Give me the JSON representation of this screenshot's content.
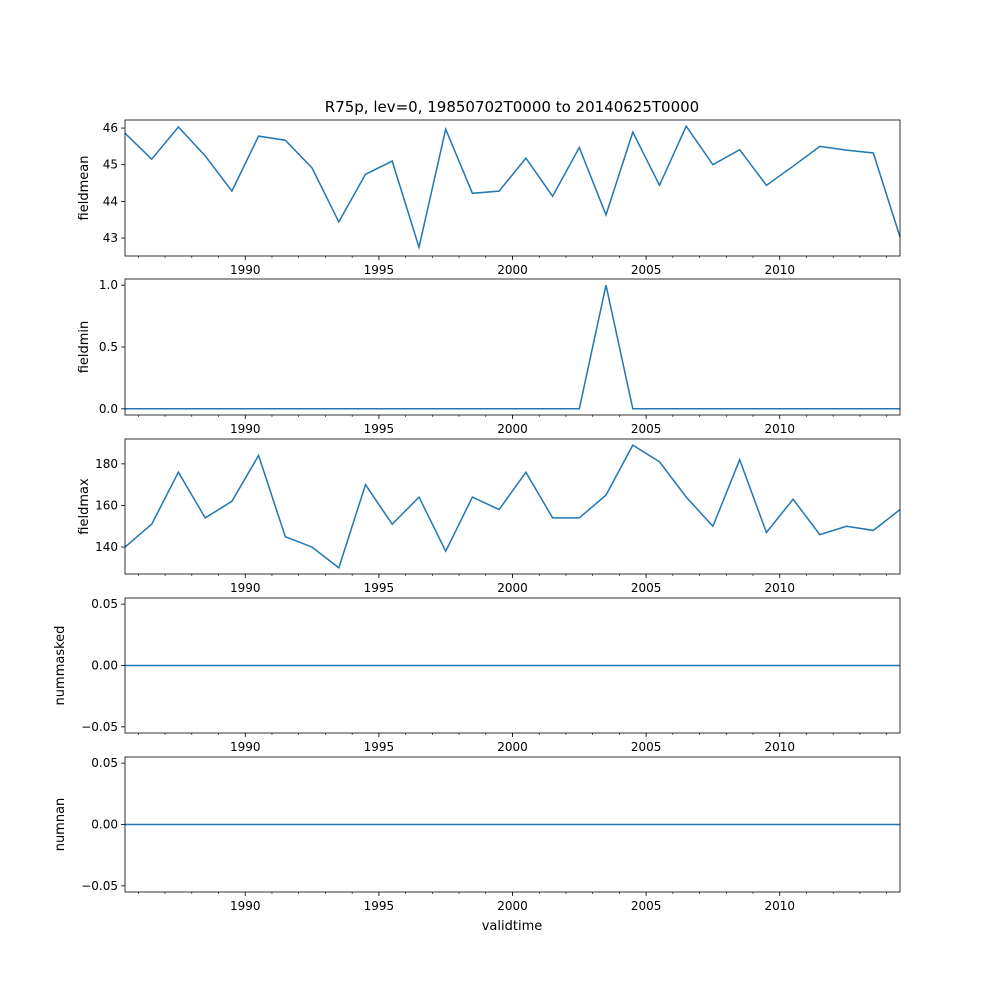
{
  "chart_data": {
    "type": "line",
    "title": "R75p, lev=0, 19850702T0000 to 20140625T0000",
    "xlabel": "validtime",
    "xlim": [
      1985.5,
      2014.5
    ],
    "xticks": [
      1990,
      1995,
      2000,
      2005,
      2010
    ],
    "x": [
      1985.5,
      1986.5,
      1987.5,
      1988.5,
      1989.5,
      1990.5,
      1991.5,
      1992.5,
      1993.5,
      1994.5,
      1995.5,
      1996.5,
      1997.5,
      1998.5,
      1999.5,
      2000.5,
      2001.5,
      2002.5,
      2003.5,
      2004.5,
      2005.5,
      2006.5,
      2007.5,
      2008.5,
      2009.5,
      2010.5,
      2011.5,
      2012.5,
      2013.5,
      2014.5
    ],
    "line_color": "#1f77b4",
    "panels": [
      {
        "ylabel": "fieldmean",
        "ylim": [
          42.51,
          46.22
        ],
        "yticks": [
          43,
          44,
          45,
          46
        ],
        "ytick_labels": [
          "43",
          "44",
          "45",
          "46"
        ],
        "values": [
          45.86,
          45.15,
          46.03,
          45.24,
          44.28,
          45.78,
          45.67,
          44.91,
          43.44,
          44.74,
          45.1,
          42.75,
          45.97,
          44.22,
          44.28,
          45.18,
          44.14,
          45.47,
          43.63,
          45.89,
          44.44,
          46.05,
          45.0,
          45.41,
          44.44,
          44.96,
          45.5,
          45.4,
          45.32,
          43.03
        ]
      },
      {
        "ylabel": "fieldmin",
        "ylim": [
          -0.05,
          1.05
        ],
        "yticks": [
          0,
          0.5,
          1.0
        ],
        "ytick_labels": [
          "0.0",
          "0.5",
          "1.0"
        ],
        "values": [
          0,
          0,
          0,
          0,
          0,
          0,
          0,
          0,
          0,
          0,
          0,
          0,
          0,
          0,
          0,
          0,
          0,
          0,
          1,
          0,
          0,
          0,
          0,
          0,
          0,
          0,
          0,
          0,
          0,
          0
        ]
      },
      {
        "ylabel": "fieldmax",
        "ylim": [
          127.05,
          191.95
        ],
        "yticks": [
          140,
          160,
          180
        ],
        "ytick_labels": [
          "140",
          "160",
          "180"
        ],
        "values": [
          140,
          151,
          176,
          154,
          162,
          184,
          145,
          140,
          130,
          170,
          151,
          164,
          138,
          164,
          158,
          176,
          154,
          154,
          165,
          189,
          181,
          164,
          150,
          182,
          147,
          163,
          146,
          150,
          148,
          158
        ]
      },
      {
        "ylabel": "nummasked",
        "ylim": [
          -0.055,
          0.055
        ],
        "yticks": [
          -0.05,
          0,
          0.05
        ],
        "ytick_labels": [
          "−0.05",
          "0.00",
          "0.05"
        ],
        "values": [
          0,
          0,
          0,
          0,
          0,
          0,
          0,
          0,
          0,
          0,
          0,
          0,
          0,
          0,
          0,
          0,
          0,
          0,
          0,
          0,
          0,
          0,
          0,
          0,
          0,
          0,
          0,
          0,
          0,
          0
        ]
      },
      {
        "ylabel": "numnan",
        "ylim": [
          -0.055,
          0.055
        ],
        "yticks": [
          -0.05,
          0,
          0.05
        ],
        "ytick_labels": [
          "−0.05",
          "0.00",
          "0.05"
        ],
        "values": [
          0,
          0,
          0,
          0,
          0,
          0,
          0,
          0,
          0,
          0,
          0,
          0,
          0,
          0,
          0,
          0,
          0,
          0,
          0,
          0,
          0,
          0,
          0,
          0,
          0,
          0,
          0,
          0,
          0,
          0
        ]
      }
    ]
  }
}
